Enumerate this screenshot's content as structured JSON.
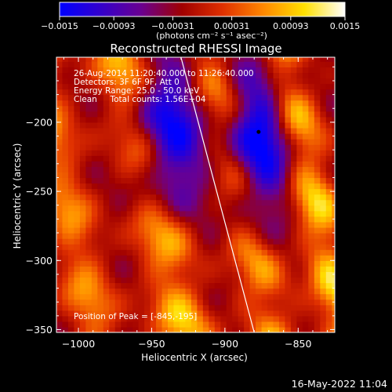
{
  "chart_data": {
    "type": "heatmap",
    "title": "Reconstructed RHESSI Image",
    "xlabel": "Heliocentric X (arcsec)",
    "ylabel": "Heliocentric Y (arcsec)",
    "xlim": [
      -1015,
      -825
    ],
    "ylim": [
      -352,
      -153
    ],
    "x_ticks": [
      -1000,
      -950,
      -900,
      -850
    ],
    "x_tick_labels": [
      "−1000",
      "−950",
      "−900",
      "−850"
    ],
    "y_ticks": [
      -350,
      -300,
      -250,
      -200
    ],
    "y_tick_labels": [
      "−350",
      "−300",
      "−250",
      "−200"
    ],
    "annotations": [
      "26-Aug-2014 11:20:40.000 to 11:26:40.000",
      "Detectors: 3F 6F 9F, Att 0",
      "Energy Range: 25.0 - 50.0 keV",
      "Clean     Total counts: 1.56E+04"
    ],
    "peak_label": "Position of Peak = [-845,-195]",
    "peak": {
      "x": -845,
      "y": -195
    },
    "black_dot": {
      "x": -877,
      "y": -207
    },
    "limb_line": [
      [
        -930,
        -153
      ],
      [
        -880,
        -352
      ]
    ],
    "colorbar": {
      "range": [
        -0.0015,
        0.0015
      ],
      "tick_labels": [
        "−0.0015",
        "−0.00093",
        "−0.00031",
        "0.00031",
        "0.00093",
        "0.0015"
      ],
      "unit_label": "(photons cm⁻² s⁻¹ asec⁻²)",
      "colormap": [
        "#0000ff",
        "#3300cc",
        "#6a0090",
        "#a00000",
        "#e03000",
        "#ff8800",
        "#ffe000",
        "#ffffff"
      ]
    },
    "source_bands": [
      {
        "x0": -950,
        "slope": 0.16,
        "amp": 0.0014,
        "width": 14
      },
      {
        "x0": -890,
        "slope": 0.16,
        "amp": 0.0012,
        "width": 13
      },
      {
        "x0": -840,
        "slope": 0.16,
        "amp": 0.0015,
        "width": 12
      },
      {
        "x0": -1010,
        "slope": 0.16,
        "amp": 0.0011,
        "width": 13
      }
    ],
    "negative_lobes": [
      {
        "x": -940,
        "y": -210,
        "amp": -0.0014,
        "sx": 18,
        "sy": 38
      },
      {
        "x": -877,
        "y": -215,
        "amp": -0.0015,
        "sx": 16,
        "sy": 40
      }
    ]
  },
  "footer": {
    "timestamp": "16-May-2022 11:04"
  }
}
